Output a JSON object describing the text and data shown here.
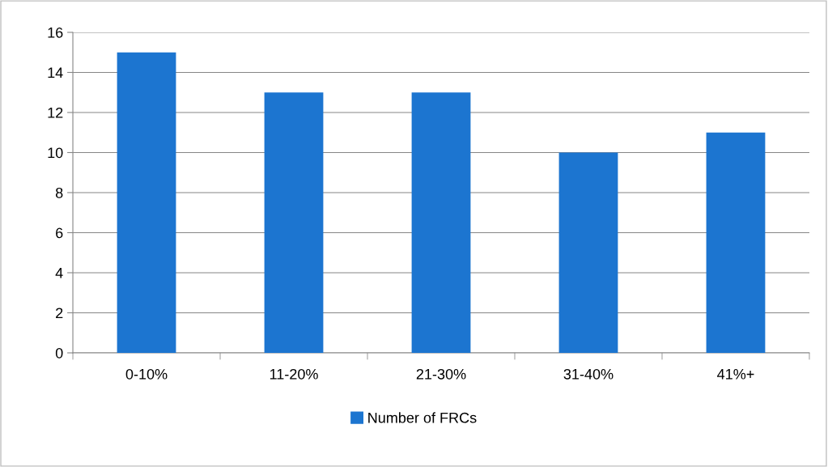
{
  "chart_data": {
    "type": "bar",
    "categories": [
      "0-10%",
      "11-20%",
      "21-30%",
      "31-40%",
      "41%+"
    ],
    "series": [
      {
        "name": "Number of FRCs",
        "color": "#1c75d0",
        "values": [
          15,
          13,
          13,
          10,
          11
        ]
      }
    ],
    "ylim": [
      0,
      16
    ],
    "yticks": [
      0,
      2,
      4,
      6,
      8,
      10,
      12,
      14,
      16
    ],
    "grid": "y",
    "legend": "bottom"
  }
}
